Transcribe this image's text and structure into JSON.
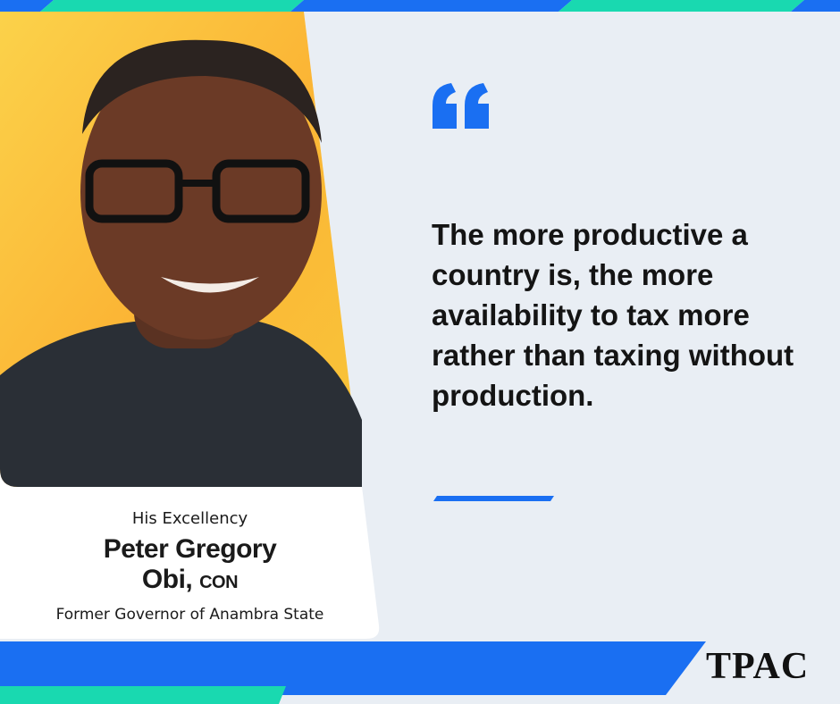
{
  "profile": {
    "honorific": "His Excellency",
    "name": "Peter Gregory Obi,",
    "suffix": "CON",
    "role": "Former Governor of Anambra State"
  },
  "quote": "The more productive a country is, the more availability to tax more rather than taxing without production.",
  "brand": "TPAC"
}
